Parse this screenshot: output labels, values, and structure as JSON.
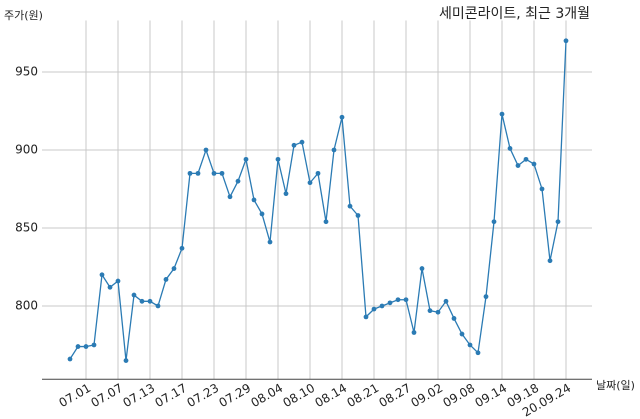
{
  "chart_data": {
    "type": "line",
    "title": "세미콘라이트, 최근 3개월",
    "ylabel": "주가(원)",
    "xlabel": "날짜(일)",
    "categories": [
      null,
      null,
      "07.01",
      null,
      null,
      null,
      "07.07",
      null,
      null,
      null,
      "07.13",
      null,
      null,
      null,
      "07.17",
      null,
      null,
      null,
      "07.23",
      null,
      null,
      null,
      "07.29",
      null,
      null,
      null,
      "08.04",
      null,
      null,
      null,
      "08.10",
      null,
      null,
      null,
      "08.14",
      null,
      null,
      null,
      "08.21",
      null,
      null,
      null,
      "08.27",
      null,
      null,
      null,
      "09.02",
      null,
      null,
      null,
      "09.08",
      null,
      null,
      null,
      "09.14",
      null,
      null,
      null,
      "09.18",
      null,
      null,
      null,
      "20.09.24"
    ],
    "series": [
      {
        "name": "세미콘라이트",
        "color": "#2b7bb4",
        "values": [
          766,
          774,
          774,
          775,
          820,
          812,
          816,
          765,
          807,
          803,
          803,
          800,
          817,
          824,
          837,
          885,
          885,
          900,
          885,
          885,
          870,
          880,
          894,
          868,
          859,
          841,
          894,
          872,
          903,
          905,
          879,
          885,
          854,
          900,
          921,
          864,
          858,
          793,
          798,
          800,
          802,
          804,
          804,
          783,
          824,
          797,
          796,
          803,
          792,
          782,
          775,
          770,
          806,
          854,
          923,
          901,
          890,
          894,
          891,
          875,
          829,
          854,
          970
        ]
      }
    ],
    "ylim": [
      753,
      983
    ],
    "yticks": [
      800,
      850,
      900,
      950
    ],
    "grid": true
  }
}
